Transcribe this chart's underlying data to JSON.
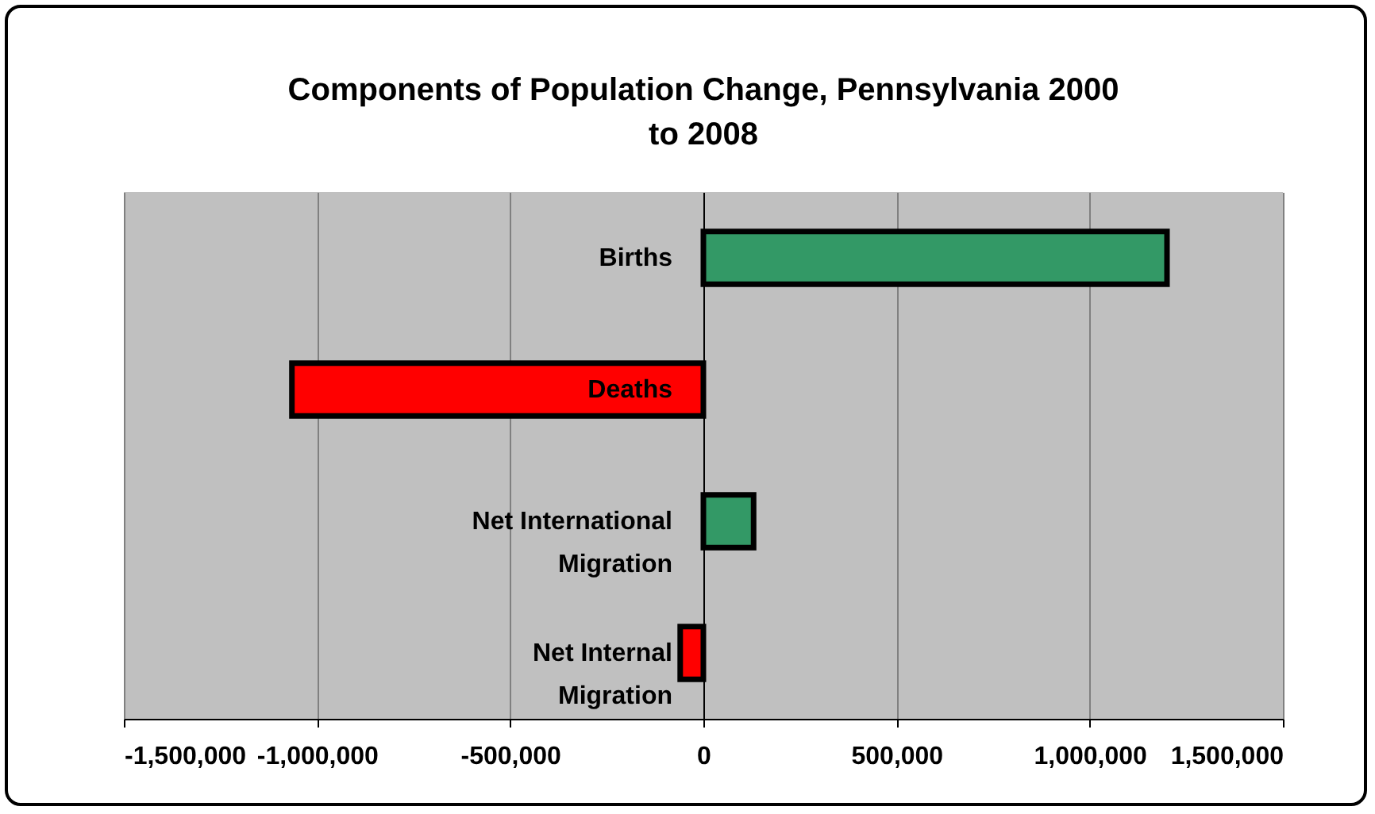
{
  "chart_data": {
    "type": "bar",
    "orientation": "horizontal",
    "title": "Components of Population Change, Pennsylvania 2000 to 2008",
    "categories": [
      "Births",
      "Deaths",
      "Net International Migration",
      "Net Internal Migration"
    ],
    "values": [
      1200000,
      -1065000,
      130000,
      -60000
    ],
    "colors": [
      "#339966",
      "#ff0000",
      "#339966",
      "#ff0000"
    ],
    "xlim": [
      -1500000,
      1500000
    ],
    "xticks": [
      {
        "value": -1500000,
        "label": "-1,500,000"
      },
      {
        "value": -1000000,
        "label": "-1,000,000"
      },
      {
        "value": -500000,
        "label": "-500,000"
      },
      0,
      {
        "value": 500000,
        "label": "500,000"
      },
      {
        "value": 1000000,
        "label": "1,000,000"
      },
      {
        "value": 1500000,
        "label": "1,500,000"
      }
    ],
    "grid": "x"
  }
}
